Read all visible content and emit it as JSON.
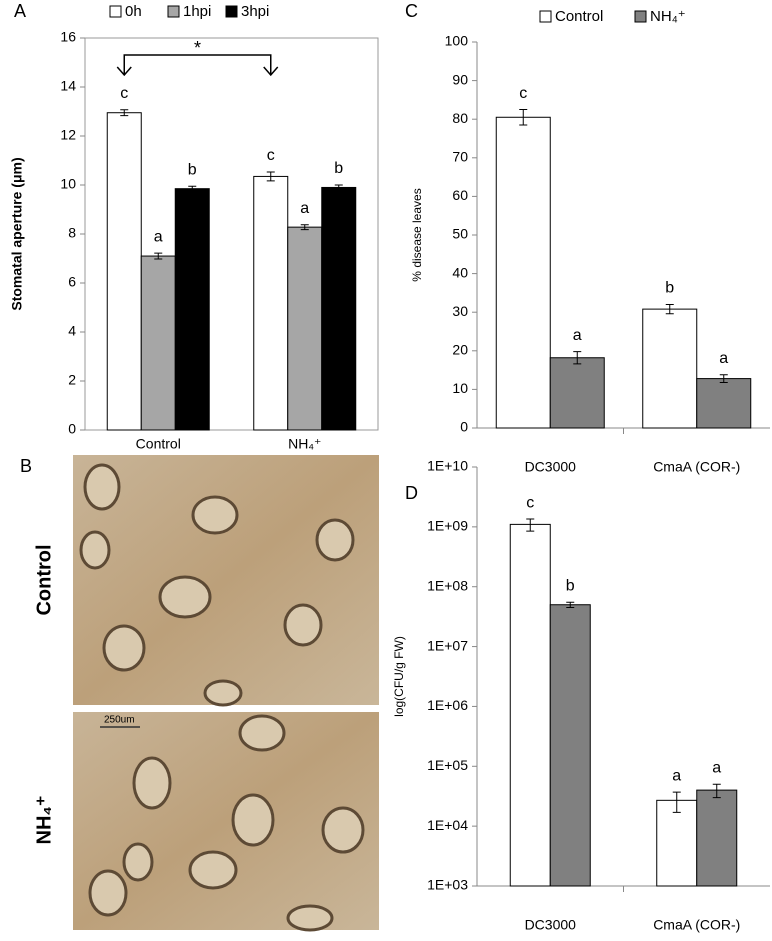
{
  "chart_data": [
    {
      "type": "bar",
      "panel_label": "A",
      "ylabel": "Stomatal aperture (μm)",
      "categories": [
        "Control",
        "NH₄⁺"
      ],
      "series": [
        {
          "name": "0h",
          "color": "#ffffff",
          "values": [
            12.95,
            10.35
          ],
          "errors": [
            0.12,
            0.18
          ],
          "letters": [
            "c",
            "c"
          ]
        },
        {
          "name": "1hpi",
          "color": "#a6a6a6",
          "values": [
            7.1,
            8.28
          ],
          "errors": [
            0.12,
            0.1
          ],
          "letters": [
            "a",
            "a"
          ]
        },
        {
          "name": "3hpi",
          "color": "#000000",
          "values": [
            9.85,
            9.9
          ],
          "errors": [
            0.1,
            0.1
          ],
          "letters": [
            "b",
            "b"
          ]
        }
      ],
      "ylim": [
        0,
        16
      ],
      "yticks": [
        0,
        2,
        4,
        6,
        8,
        10,
        12,
        14,
        16
      ],
      "legend": "top",
      "frame": true,
      "annotation": "*"
    },
    {
      "type": "bar",
      "panel_label": "C",
      "ylabel": "% disease leaves",
      "categories": [
        "DC3000",
        "CmaA (COR-)"
      ],
      "series": [
        {
          "name": "Control",
          "color": "#ffffff",
          "values": [
            80.5,
            30.8
          ],
          "errors": [
            2.0,
            1.2
          ],
          "letters": [
            "c",
            "b"
          ]
        },
        {
          "name": "NH₄⁺",
          "color": "#808080",
          "values": [
            18.2,
            12.8
          ],
          "errors": [
            1.6,
            1.0
          ],
          "letters": [
            "a",
            "a"
          ]
        }
      ],
      "ylim": [
        0,
        100
      ],
      "yticks": [
        0,
        10,
        20,
        30,
        40,
        50,
        60,
        70,
        80,
        90,
        100
      ],
      "legend": "top"
    },
    {
      "type": "bar",
      "panel_label": "D",
      "ylabel": "log(CFU/g FW)",
      "categories": [
        "DC3000",
        "CmaA (COR-)"
      ],
      "series": [
        {
          "color": "#ffffff",
          "values": [
            1100000000,
            27000
          ],
          "errors": [
            250000000,
            10000
          ],
          "letters": [
            "c",
            "a"
          ]
        },
        {
          "color": "#808080",
          "values": [
            50000000,
            40000
          ],
          "errors": [
            5000000,
            10000
          ],
          "letters": [
            "b",
            "a"
          ]
        }
      ],
      "ylim": [
        1000,
        10000000000
      ],
      "log_scale": true,
      "yticks": [
        {
          "value": 1000,
          "label": "1E+03"
        },
        {
          "value": 10000,
          "label": "1E+04"
        },
        {
          "value": 100000,
          "label": "1E+05"
        },
        {
          "value": 1000000,
          "label": "1E+06"
        },
        {
          "value": 10000000,
          "label": "1E+07"
        },
        {
          "value": 100000000,
          "label": "1E+08"
        },
        {
          "value": 1000000000,
          "label": "1E+09"
        },
        {
          "value": 10000000000,
          "label": "1E+10"
        }
      ]
    }
  ],
  "photo_panel": {
    "label": "B",
    "rows": [
      "Control",
      "NH₄⁺"
    ],
    "scale_bar": "250um"
  }
}
